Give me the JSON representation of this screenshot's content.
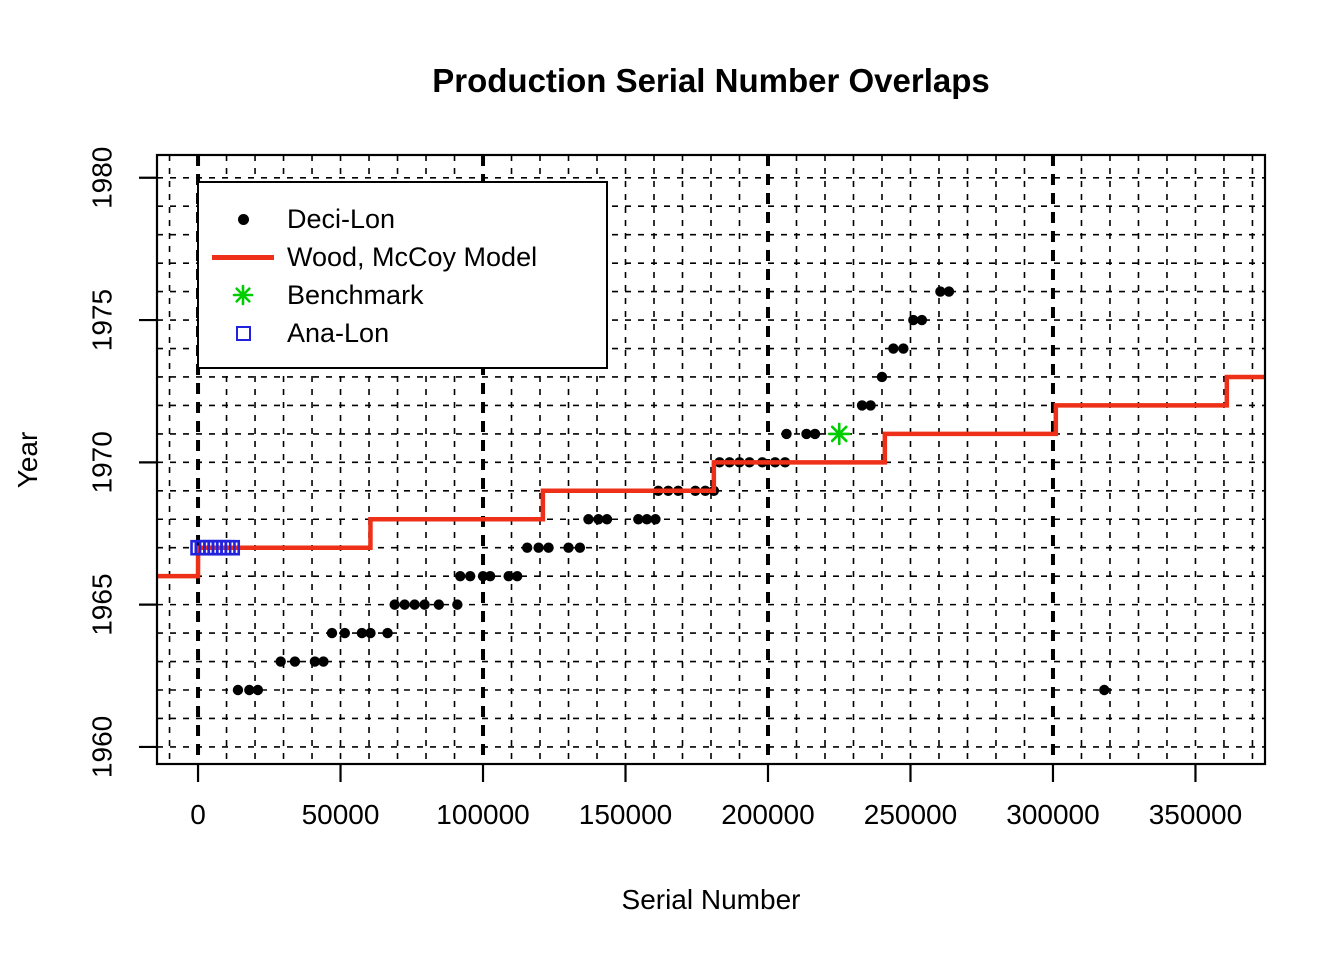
{
  "chart_data": {
    "type": "scatter",
    "title": "Production Serial Number Overlaps",
    "xlabel": "Serial Number",
    "ylabel": "Year",
    "xlim": [
      -14400,
      374400
    ],
    "ylim": [
      1959.4,
      1980.8
    ],
    "x_ticks": [
      0,
      50000,
      100000,
      150000,
      200000,
      250000,
      300000,
      350000
    ],
    "y_ticks": [
      1960,
      1965,
      1970,
      1975,
      1980
    ],
    "grid": {
      "on": true,
      "y_from": 1960,
      "y_to": 1980,
      "y_step": 1,
      "x_minor_from": -10000,
      "x_minor_to": 370000,
      "x_minor_step": 10000,
      "x_major": [
        0,
        100000,
        200000,
        300000
      ]
    },
    "series": {
      "deci_lon": {
        "name": "Deci-Lon",
        "marker": "filled-circle",
        "color": "#000000",
        "points": [
          [
            14000,
            1962
          ],
          [
            18000,
            1962
          ],
          [
            21000,
            1962
          ],
          [
            29000,
            1963
          ],
          [
            34000,
            1963
          ],
          [
            41000,
            1963
          ],
          [
            44000,
            1963
          ],
          [
            47000,
            1964
          ],
          [
            51500,
            1964
          ],
          [
            57500,
            1964
          ],
          [
            60500,
            1964
          ],
          [
            66500,
            1964
          ],
          [
            69000,
            1965
          ],
          [
            72500,
            1965
          ],
          [
            76000,
            1965
          ],
          [
            79500,
            1965
          ],
          [
            84500,
            1965
          ],
          [
            91000,
            1965
          ],
          [
            92000,
            1966
          ],
          [
            95500,
            1966
          ],
          [
            100000,
            1966
          ],
          [
            102500,
            1966
          ],
          [
            109000,
            1966
          ],
          [
            112000,
            1966
          ],
          [
            115500,
            1967
          ],
          [
            119500,
            1967
          ],
          [
            123000,
            1967
          ],
          [
            130000,
            1967
          ],
          [
            134000,
            1967
          ],
          [
            137000,
            1968
          ],
          [
            140500,
            1968
          ],
          [
            143500,
            1968
          ],
          [
            154500,
            1968
          ],
          [
            157500,
            1968
          ],
          [
            160500,
            1968
          ],
          [
            161500,
            1969
          ],
          [
            165000,
            1969
          ],
          [
            168500,
            1969
          ],
          [
            174500,
            1969
          ],
          [
            178000,
            1969
          ],
          [
            181000,
            1969
          ],
          [
            183000,
            1970
          ],
          [
            186500,
            1970
          ],
          [
            190000,
            1970
          ],
          [
            193500,
            1970
          ],
          [
            198000,
            1970
          ],
          [
            202500,
            1970
          ],
          [
            206000,
            1970
          ],
          [
            206500,
            1971
          ],
          [
            213500,
            1971
          ],
          [
            216500,
            1971
          ],
          [
            233000,
            1972
          ],
          [
            236000,
            1972
          ],
          [
            240000,
            1973
          ],
          [
            244000,
            1974
          ],
          [
            247500,
            1974
          ],
          [
            251000,
            1975
          ],
          [
            254000,
            1975
          ],
          [
            260500,
            1976
          ],
          [
            263500,
            1976
          ],
          [
            318000,
            1962
          ]
        ]
      },
      "model": {
        "name": "Wood, McCoy Model",
        "color": "#EE3018",
        "type": "step-line",
        "steps": [
          [
            -14400,
            1966
          ],
          [
            0,
            1967
          ],
          [
            60500,
            1968
          ],
          [
            121000,
            1969
          ],
          [
            181000,
            1970
          ],
          [
            241000,
            1971
          ],
          [
            301000,
            1972
          ],
          [
            361000,
            1973
          ]
        ],
        "end_x": 374400
      },
      "benchmark": {
        "name": "Benchmark",
        "marker": "asterisk",
        "color": "#00CD00",
        "points": [
          [
            225000,
            1971
          ]
        ]
      },
      "ana_lon": {
        "name": "Ana-Lon",
        "marker": "open-square",
        "color": "#2222DD",
        "points": [
          [
            0,
            1967
          ],
          [
            1500,
            1967
          ],
          [
            3000,
            1967
          ],
          [
            4500,
            1967
          ],
          [
            6000,
            1967
          ],
          [
            7500,
            1967
          ],
          [
            9000,
            1967
          ],
          [
            10500,
            1967
          ],
          [
            12000,
            1967
          ]
        ]
      }
    },
    "legend": {
      "position": "top-left",
      "items": [
        {
          "symbol": "filled-circle",
          "color": "#000000",
          "label": "Deci-Lon"
        },
        {
          "symbol": "line",
          "color": "#EE3018",
          "label": "Wood, McCoy Model"
        },
        {
          "symbol": "asterisk",
          "color": "#00CD00",
          "label": "Benchmark"
        },
        {
          "symbol": "open-square",
          "color": "#2222DD",
          "label": "Ana-Lon"
        }
      ]
    }
  }
}
